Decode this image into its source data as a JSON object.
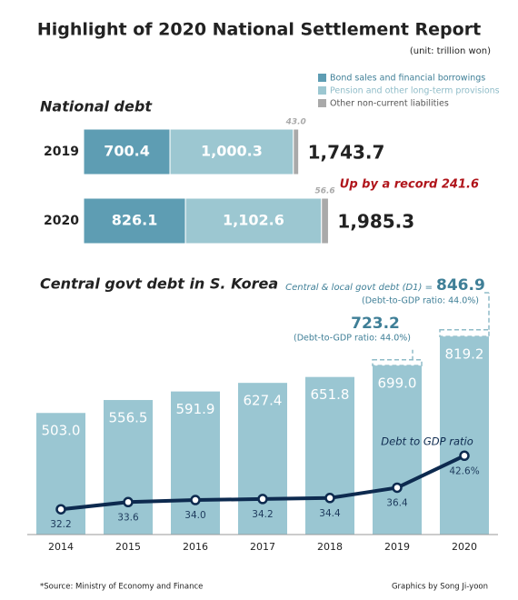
{
  "header": {
    "title": "Highlight of 2020 National Settlement Report",
    "unit": "(unit: trillion won)",
    "source": "*Source: Ministry of Economy and Finance",
    "credit": "Graphics by Song Ji-yoon"
  },
  "chart_data": [
    {
      "type": "stacked-hbar",
      "title": "National debt",
      "categories": [
        "2019",
        "2020"
      ],
      "xlim": [
        0,
        3500
      ],
      "series": [
        {
          "name": "Bond sales and financial borrowings",
          "color": "#5e9db3",
          "values": [
            700.4,
            826.1
          ]
        },
        {
          "name": "Pension and other long-term provisions",
          "color": "#9cc7d1",
          "values": [
            1000.3,
            1102.6
          ],
          "value_labels": [
            "1,000.3",
            "1,102.6"
          ]
        },
        {
          "name": "Other non-current liabilities",
          "color": "#a9a9a9",
          "values": [
            43.0,
            56.6
          ],
          "value_labels": [
            "43.0",
            "56.6"
          ]
        }
      ],
      "totals": [
        1743.7,
        1985.3
      ],
      "total_labels": [
        "1,743.7",
        "1,985.3"
      ],
      "annotation": "Up by a record 241.6"
    },
    {
      "type": "bar-line",
      "title": "Central govt debt in S. Korea",
      "categories": [
        "2014",
        "2015",
        "2016",
        "2017",
        "2018",
        "2019",
        "2020"
      ],
      "ylim": [
        0,
        880
      ],
      "y2lim": [
        27.3,
        68.6
      ],
      "series": [
        {
          "type": "bar",
          "color": "#9ac6d2",
          "values": [
            503.0,
            556.5,
            591.9,
            627.4,
            651.8,
            699.0,
            819.2
          ],
          "value_labels": [
            "503.0",
            "556.5",
            "591.9",
            "627.4",
            "651.8",
            "699.0",
            "819.2"
          ]
        },
        {
          "type": "line",
          "name": "Debt to GDP ratio",
          "axis": "y2",
          "color": "#0d2a4f",
          "values": [
            32.2,
            33.6,
            34.0,
            34.2,
            34.4,
            36.4,
            42.6
          ],
          "value_labels": [
            "32.2",
            "33.6",
            "34.0",
            "34.2",
            "34.4",
            "36.4",
            "42.6%"
          ]
        }
      ],
      "d1": {
        "prefix": "Central & local govt debt (D1) =",
        "values": [
          null,
          null,
          null,
          null,
          null,
          723.2,
          846.9
        ],
        "ratio_labels": [
          null,
          null,
          null,
          null,
          null,
          "(Debt-to-GDP ratio: 44.0%)",
          "(Debt-to-GDP ratio: 44.0%)"
        ]
      }
    }
  ]
}
